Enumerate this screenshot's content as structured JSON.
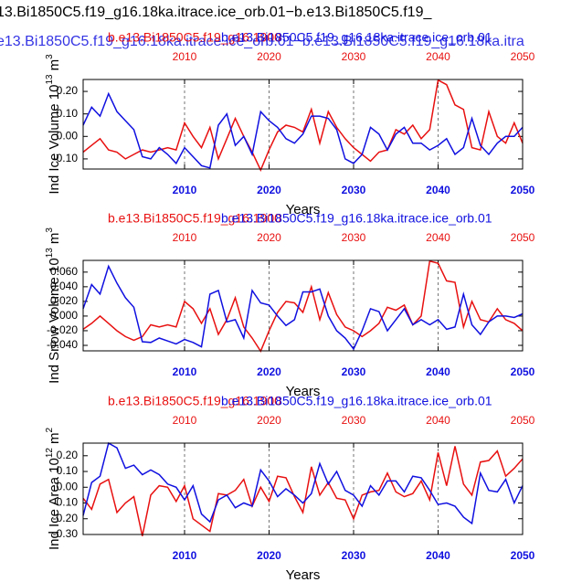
{
  "title": "13.Bi1850C5.f19_g16.18ka.itrace.ice_orb.01−b.e13.Bi1850C5.f19_",
  "subtitle": "e13.Bi1850C5.f19_g16.18ka.itrace.ice_orb.01−b.e13.Bi1850C5.f19_g16.18ka.itra",
  "chart_data": [
    {
      "type": "line",
      "ylabel": "Ind Ice Volume 10",
      "ylabel_exponent": "13",
      "ylabel_unit": "m",
      "ylabel_unit_exponent": "3",
      "xlabel": "Years",
      "xlim": [
        1998,
        2050
      ],
      "xticks": [
        2010,
        2020,
        2030,
        2040,
        2050
      ],
      "x2ticks": [
        2010,
        2020,
        2030,
        2040,
        2050
      ],
      "xgrid": true,
      "ylim": [
        -0.145,
        0.253
      ],
      "yticks": [
        {
          "value": 0.2,
          "label": "0.20"
        },
        {
          "value": 0.1,
          "label": "0.10"
        },
        {
          "value": 0,
          "label": "0.00"
        },
        {
          "value": -0.1,
          "label": "-0.10"
        }
      ],
      "x": [
        1998,
        1999,
        2000,
        2001,
        2002,
        2003,
        2004,
        2005,
        2006,
        2007,
        2008,
        2009,
        2010,
        2011,
        2012,
        2013,
        2014,
        2015,
        2016,
        2017,
        2018,
        2019,
        2020,
        2021,
        2022,
        2023,
        2024,
        2025,
        2026,
        2027,
        2028,
        2029,
        2030,
        2031,
        2032,
        2033,
        2034,
        2035,
        2036,
        2037,
        2038,
        2039,
        2040,
        2041,
        2042,
        2043,
        2044,
        2045,
        2046,
        2047,
        2048,
        2049,
        2050
      ],
      "series": [
        {
          "name": "b.e13.Bi1850C5.f19_g16.1900",
          "color": "#e81010",
          "values": [
            -0.07,
            -0.04,
            -0.01,
            -0.06,
            -0.07,
            -0.1,
            -0.08,
            -0.06,
            -0.07,
            -0.06,
            -0.05,
            -0.06,
            0.06,
            0.0,
            -0.05,
            0.04,
            -0.1,
            -0.01,
            0.08,
            0.0,
            -0.07,
            -0.15,
            -0.06,
            0.02,
            0.05,
            0.04,
            0.02,
            0.12,
            -0.03,
            0.11,
            0.04,
            -0.01,
            -0.05,
            -0.08,
            -0.11,
            -0.07,
            -0.06,
            0.03,
            0.01,
            0.05,
            -0.01,
            0.03,
            0.25,
            0.23,
            0.14,
            0.12,
            -0.05,
            -0.06,
            0.11,
            0.0,
            -0.03,
            0.06,
            -0.03
          ]
        },
        {
          "name": "b.e13.Bi1850C5.f19_g16.18ka.itrace.ice_orb.01",
          "color": "#1010e0",
          "values": [
            0.05,
            0.13,
            0.09,
            0.19,
            0.11,
            0.07,
            0.03,
            -0.09,
            -0.1,
            -0.05,
            -0.08,
            -0.12,
            -0.05,
            -0.09,
            -0.13,
            -0.14,
            0.05,
            0.1,
            -0.04,
            0.0,
            -0.08,
            0.11,
            0.07,
            0.04,
            -0.01,
            -0.03,
            0.01,
            0.09,
            0.09,
            0.08,
            0.03,
            -0.1,
            -0.12,
            -0.08,
            0.04,
            0.01,
            -0.06,
            0.01,
            0.04,
            -0.03,
            -0.03,
            -0.06,
            -0.04,
            -0.01,
            -0.08,
            -0.05,
            0.08,
            -0.04,
            -0.08,
            -0.03,
            0.0,
            0.0,
            0.04
          ]
        }
      ]
    },
    {
      "type": "line",
      "ylabel": "Ind Snow Volume 10",
      "ylabel_exponent": "13",
      "ylabel_unit": "m",
      "ylabel_unit_exponent": "3",
      "xlabel": "Years",
      "xlim": [
        1998,
        2050
      ],
      "xticks": [
        2010,
        2020,
        2030,
        2040,
        2050
      ],
      "x2ticks": [
        2010,
        2020,
        2030,
        2040,
        2050
      ],
      "xgrid": true,
      "ylim": [
        -0.0475,
        0.076
      ],
      "yticks": [
        {
          "value": 0.06,
          "label": "0.060"
        },
        {
          "value": 0.04,
          "label": "0.040"
        },
        {
          "value": 0.02,
          "label": "0.020"
        },
        {
          "value": 0,
          "label": "0.000"
        },
        {
          "value": -0.02,
          "label": "-0.020"
        },
        {
          "value": -0.04,
          "label": "-0.040"
        }
      ],
      "x": [
        1998,
        1999,
        2000,
        2001,
        2002,
        2003,
        2004,
        2005,
        2006,
        2007,
        2008,
        2009,
        2010,
        2011,
        2012,
        2013,
        2014,
        2015,
        2016,
        2017,
        2018,
        2019,
        2020,
        2021,
        2022,
        2023,
        2024,
        2025,
        2026,
        2027,
        2028,
        2029,
        2030,
        2031,
        2032,
        2033,
        2034,
        2035,
        2036,
        2037,
        2038,
        2039,
        2040,
        2041,
        2042,
        2043,
        2044,
        2045,
        2046,
        2047,
        2048,
        2049,
        2050
      ],
      "series": [
        {
          "name": "b.e13.Bi1850C5.f19_g16.1900",
          "color": "#e81010",
          "values": [
            -0.018,
            -0.01,
            0.0,
            -0.01,
            -0.02,
            -0.028,
            -0.033,
            -0.028,
            -0.012,
            -0.015,
            -0.012,
            -0.015,
            0.02,
            0.01,
            -0.01,
            0.01,
            -0.025,
            -0.005,
            0.025,
            -0.015,
            -0.03,
            -0.048,
            -0.02,
            0.005,
            0.02,
            0.018,
            0.005,
            0.04,
            -0.005,
            0.032,
            0.002,
            -0.015,
            -0.02,
            -0.028,
            -0.02,
            -0.01,
            0.012,
            0.008,
            0.015,
            -0.012,
            0.0,
            0.075,
            0.072,
            0.048,
            0.046,
            -0.015,
            0.02,
            -0.005,
            -0.008,
            0.01,
            -0.005,
            -0.01,
            -0.02
          ]
        },
        {
          "name": "b.e13.Bi1850C5.f19_g16.18ka.itrace.ice_orb.01",
          "color": "#1010e0",
          "values": [
            0.01,
            0.043,
            0.03,
            0.068,
            0.045,
            0.025,
            0.012,
            -0.035,
            -0.036,
            -0.03,
            -0.034,
            -0.038,
            -0.032,
            -0.036,
            -0.042,
            0.03,
            0.035,
            -0.008,
            -0.005,
            -0.03,
            0.035,
            0.018,
            0.015,
            0.0,
            -0.013,
            -0.005,
            0.033,
            0.033,
            0.037,
            0.0,
            -0.02,
            -0.03,
            -0.045,
            -0.02,
            0.01,
            0.006,
            -0.02,
            -0.005,
            0.01,
            -0.012,
            -0.005,
            -0.012,
            -0.005,
            -0.018,
            -0.015,
            0.03,
            -0.012,
            -0.025,
            -0.008,
            0.0,
            0.0,
            -0.002,
            0.003
          ]
        }
      ]
    },
    {
      "type": "line",
      "ylabel": "Ind Ice Area 10",
      "ylabel_exponent": "12",
      "ylabel_unit": "m",
      "ylabel_unit_exponent": "2",
      "xlabel": "Years",
      "xlim": [
        1998,
        2050
      ],
      "xticks": [
        2010,
        2020,
        2030,
        2040,
        2050
      ],
      "x2ticks": [
        2010,
        2020,
        2030,
        2040,
        2050
      ],
      "xgrid": true,
      "ylim": [
        -0.3,
        0.28
      ],
      "yticks": [
        {
          "value": 0.2,
          "label": "0.20"
        },
        {
          "value": 0.1,
          "label": "0.10"
        },
        {
          "value": 0,
          "label": "0.00"
        },
        {
          "value": -0.1,
          "label": "-0.10"
        },
        {
          "value": -0.2,
          "label": "-0.20"
        },
        {
          "value": -0.3,
          "label": "-0.30"
        }
      ],
      "x": [
        1998,
        1999,
        2000,
        2001,
        2002,
        2003,
        2004,
        2005,
        2006,
        2007,
        2008,
        2009,
        2010,
        2011,
        2012,
        2013,
        2014,
        2015,
        2016,
        2017,
        2018,
        2019,
        2020,
        2021,
        2022,
        2023,
        2024,
        2025,
        2026,
        2027,
        2028,
        2029,
        2030,
        2031,
        2032,
        2033,
        2034,
        2035,
        2036,
        2037,
        2038,
        2039,
        2040,
        2041,
        2042,
        2043,
        2044,
        2045,
        2046,
        2047,
        2048,
        2049,
        2050
      ],
      "series": [
        {
          "name": "b.e13.Bi1850C5.f19_g16.1900",
          "color": "#e81010",
          "values": [
            -0.07,
            -0.14,
            0.02,
            0.05,
            -0.16,
            -0.1,
            -0.06,
            -0.31,
            -0.05,
            0.01,
            0.0,
            -0.09,
            0.01,
            -0.2,
            -0.24,
            -0.28,
            -0.04,
            -0.05,
            -0.02,
            0.05,
            -0.12,
            0.0,
            -0.09,
            0.07,
            0.06,
            -0.06,
            -0.16,
            0.13,
            -0.05,
            0.03,
            -0.07,
            -0.08,
            -0.2,
            -0.05,
            -0.03,
            -0.02,
            0.09,
            -0.03,
            -0.06,
            -0.04,
            0.04,
            -0.08,
            0.22,
            0.01,
            0.26,
            0.02,
            -0.05,
            0.16,
            0.17,
            0.23,
            0.07,
            0.12,
            0.18
          ]
        },
        {
          "name": "b.e13.Bi1850C5.f19_g16.18ka.itrace.ice_orb.01",
          "color": "#1010e0",
          "values": [
            -0.18,
            0.03,
            0.07,
            0.28,
            0.25,
            0.12,
            0.14,
            0.08,
            0.11,
            0.08,
            0.02,
            0.0,
            -0.08,
            0.01,
            -0.17,
            -0.22,
            -0.08,
            -0.05,
            -0.13,
            -0.1,
            -0.12,
            0.11,
            0.04,
            -0.06,
            -0.01,
            -0.05,
            -0.1,
            -0.04,
            0.15,
            0.02,
            0.1,
            -0.02,
            -0.05,
            -0.12,
            0.01,
            -0.05,
            0.04,
            0.04,
            -0.03,
            0.07,
            0.06,
            -0.02,
            -0.11,
            -0.1,
            -0.12,
            -0.19,
            -0.23,
            0.09,
            -0.02,
            -0.03,
            0.05,
            -0.1,
            0.01
          ]
        }
      ]
    }
  ]
}
